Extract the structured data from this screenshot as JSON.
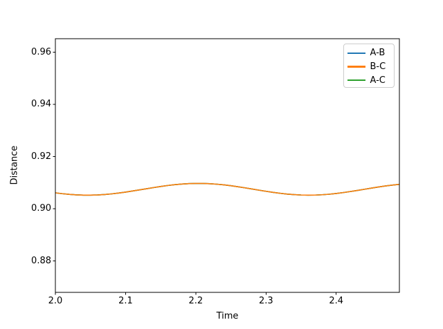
{
  "chart_data": {
    "type": "line",
    "xlabel": "Time",
    "ylabel": "Distance",
    "xlim": [
      2.0,
      2.49
    ],
    "ylim": [
      0.868,
      0.9652
    ],
    "grid": false,
    "legend_position": "upper right",
    "xticks": {
      "values": [
        2.0,
        2.1,
        2.2,
        2.3,
        2.4
      ],
      "labels": [
        "2.0",
        "2.1",
        "2.2",
        "2.3",
        "2.4"
      ]
    },
    "yticks": {
      "values": [
        0.88,
        0.9,
        0.92,
        0.94,
        0.96
      ],
      "labels": [
        "0.88",
        "0.90",
        "0.92",
        "0.94",
        "0.96"
      ]
    },
    "x": [
      2.0,
      2.01,
      2.02,
      2.03,
      2.04,
      2.05,
      2.06,
      2.07,
      2.08,
      2.09,
      2.1,
      2.11,
      2.12,
      2.13,
      2.14,
      2.15,
      2.16,
      2.17,
      2.18,
      2.19,
      2.2,
      2.21,
      2.22,
      2.23,
      2.24,
      2.25,
      2.26,
      2.27,
      2.28,
      2.29,
      2.3,
      2.31,
      2.32,
      2.33,
      2.34,
      2.35,
      2.36,
      2.37,
      2.38,
      2.39,
      2.4,
      2.41,
      2.42,
      2.43,
      2.44,
      2.45,
      2.46,
      2.47,
      2.48,
      2.49
    ],
    "series": [
      {
        "name": "A-B",
        "color": "#1f77b4",
        "values": [
          0.90614,
          0.90581,
          0.90555,
          0.90537,
          0.90527,
          0.90526,
          0.90533,
          0.9055,
          0.90574,
          0.90605,
          0.90642,
          0.90684,
          0.90728,
          0.90772,
          0.90816,
          0.90858,
          0.90895,
          0.90926,
          0.9095,
          0.90967,
          0.90974,
          0.90973,
          0.90963,
          0.90945,
          0.90919,
          0.90886,
          0.90848,
          0.90806,
          0.90761,
          0.90716,
          0.90673,
          0.90632,
          0.90597,
          0.90567,
          0.90545,
          0.90531,
          0.90525,
          0.90528,
          0.90541,
          0.90561,
          0.9059,
          0.90624,
          0.90663,
          0.90705,
          0.9075,
          0.90795,
          0.90837,
          0.90877,
          0.90911,
          0.90939
        ]
      },
      {
        "name": "B-C",
        "color": "#ff7f0e",
        "values": [
          0.90614,
          0.90581,
          0.90555,
          0.90537,
          0.90527,
          0.90526,
          0.90533,
          0.9055,
          0.90574,
          0.90605,
          0.90642,
          0.90684,
          0.90728,
          0.90772,
          0.90816,
          0.90858,
          0.90895,
          0.90926,
          0.9095,
          0.90967,
          0.90974,
          0.90973,
          0.90963,
          0.90945,
          0.90919,
          0.90886,
          0.90848,
          0.90806,
          0.90761,
          0.90716,
          0.90673,
          0.90632,
          0.90597,
          0.90567,
          0.90545,
          0.90531,
          0.90525,
          0.90528,
          0.90541,
          0.90561,
          0.9059,
          0.90624,
          0.90663,
          0.90705,
          0.9075,
          0.90795,
          0.90837,
          0.90877,
          0.90911,
          0.90939
        ]
      },
      {
        "name": "A-C",
        "color": "#2ca02c",
        "values": [
          0.90614,
          0.90581,
          0.90555,
          0.90537,
          0.90527,
          0.90526,
          0.90533,
          0.9055,
          0.90574,
          0.90605,
          0.90642,
          0.90684,
          0.90728,
          0.90772,
          0.90816,
          0.90858,
          0.90895,
          0.90926,
          0.9095,
          0.90967,
          0.90974,
          0.90973,
          0.90963,
          0.90945,
          0.90919,
          0.90886,
          0.90848,
          0.90806,
          0.90761,
          0.90716,
          0.90673,
          0.90632,
          0.90597,
          0.90567,
          0.90545,
          0.90531,
          0.90525,
          0.90528,
          0.90541,
          0.90561,
          0.9059,
          0.90624,
          0.90663,
          0.90705,
          0.9075,
          0.90795,
          0.90837,
          0.90877,
          0.90911,
          0.90939
        ]
      }
    ]
  }
}
